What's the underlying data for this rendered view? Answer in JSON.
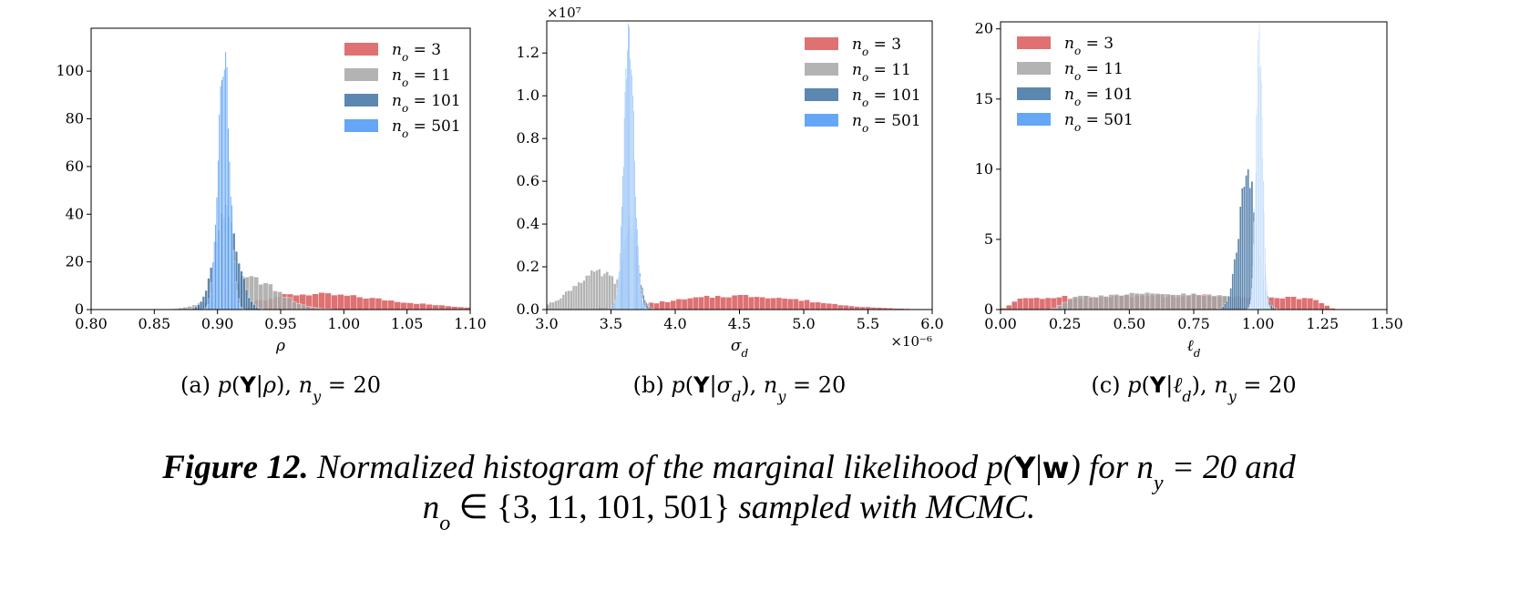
{
  "chart_data": [
    {
      "type": "bar",
      "xlabel": "ρ",
      "subcaption": "(a) p(Y|ρ), n_y = 20",
      "xlim": [
        0.8,
        1.1
      ],
      "ylim": [
        0,
        118
      ],
      "xticks": [
        "0.80",
        "0.85",
        "0.90",
        "0.95",
        "1.00",
        "1.05",
        "1.10"
      ],
      "yticks": [
        "0",
        "20",
        "40",
        "60",
        "80",
        "100"
      ],
      "ytick_values": [
        0,
        20,
        40,
        60,
        80,
        100
      ],
      "xtick_values": [
        0.8,
        0.85,
        0.9,
        0.95,
        1.0,
        1.05,
        1.1
      ],
      "legend_position": "upper-right",
      "series": [
        {
          "name": "n_o = 3",
          "color": "#d9585a",
          "distribution": "right-skewed",
          "center": 0.97,
          "spread": 0.055,
          "peak": 6.5,
          "xrange": [
            0.8,
            1.1
          ]
        },
        {
          "name": "n_o = 11",
          "color": "#a6a6a6",
          "distribution": "normal",
          "center": 0.925,
          "spread": 0.022,
          "peak": 13,
          "xrange": [
            0.85,
            1.0
          ]
        },
        {
          "name": "n_o = 101",
          "color": "#3f72a2",
          "distribution": "normal",
          "center": 0.907,
          "spread": 0.009,
          "peak": 40,
          "xrange": [
            0.87,
            0.95
          ]
        },
        {
          "name": "n_o = 501",
          "color": "#4a97f5",
          "distribution": "normal",
          "center": 0.905,
          "spread": 0.0045,
          "peak": 111,
          "xrange": [
            0.885,
            0.93
          ]
        }
      ]
    },
    {
      "type": "bar",
      "xlabel": "σ_d",
      "subcaption": "(b) p(Y|σ_d), n_y = 20",
      "x_multiplier": "×10⁻⁶",
      "y_multiplier": "×10⁷",
      "xlim": [
        3.0,
        6.0
      ],
      "ylim": [
        0,
        1.35
      ],
      "xticks": [
        "3.0",
        "3.5",
        "4.0",
        "4.5",
        "5.0",
        "5.5",
        "6.0"
      ],
      "yticks": [
        "0.0",
        "0.2",
        "0.4",
        "0.6",
        "0.8",
        "1.0",
        "1.2"
      ],
      "ytick_values": [
        0,
        0.2,
        0.4,
        0.6,
        0.8,
        1.0,
        1.2
      ],
      "xtick_values": [
        3.0,
        3.5,
        4.0,
        4.5,
        5.0,
        5.5,
        6.0
      ],
      "legend_position": "upper-right",
      "series": [
        {
          "name": "n_o = 3",
          "color": "#d9585a",
          "distribution": "normal",
          "center": 4.5,
          "spread": 0.55,
          "peak": 0.065,
          "xrange": [
            3.4,
            6.0
          ]
        },
        {
          "name": "n_o = 11",
          "color": "#a6a6a6",
          "distribution": "normal",
          "center": 3.4,
          "spread": 0.2,
          "peak": 0.17,
          "xrange": [
            3.0,
            3.8
          ]
        },
        {
          "name": "n_o = 101",
          "color": "#3f72a2",
          "distribution": "normal",
          "center": 3.65,
          "spread": 0.055,
          "peak": 0.42,
          "xrange": [
            3.45,
            3.85
          ]
        },
        {
          "name": "n_o = 501",
          "color": "#4a97f5",
          "distribution": "normal",
          "center": 3.64,
          "spread": 0.04,
          "peak": 1.27,
          "xrange": [
            3.5,
            3.8
          ]
        }
      ]
    },
    {
      "type": "bar",
      "xlabel": "ℓ_d",
      "subcaption": "(c) p(Y|ℓ_d), n_y = 20",
      "xlim": [
        0.0,
        1.5
      ],
      "ylim": [
        0,
        20.5
      ],
      "xticks": [
        "0.00",
        "0.25",
        "0.50",
        "0.75",
        "1.00",
        "1.25",
        "1.50"
      ],
      "yticks": [
        "0",
        "5",
        "10",
        "15",
        "20"
      ],
      "ytick_values": [
        0,
        5,
        10,
        15,
        20
      ],
      "xtick_values": [
        0,
        0.25,
        0.5,
        0.75,
        1.0,
        1.25,
        1.5
      ],
      "legend_position": "upper-left",
      "series": [
        {
          "name": "n_o = 3",
          "color": "#d9585a",
          "distribution": "flat",
          "center": 0.55,
          "spread": 0.6,
          "peak": 1.0,
          "xrange": [
            0.0,
            1.3
          ]
        },
        {
          "name": "n_o = 11",
          "color": "#a6a6a6",
          "distribution": "flat",
          "center": 0.55,
          "spread": 0.55,
          "peak": 1.1,
          "xrange": [
            0.2,
            1.0
          ]
        },
        {
          "name": "n_o = 101",
          "color": "#3f72a2",
          "distribution": "normal",
          "center": 0.96,
          "spread": 0.035,
          "peak": 9.5,
          "xrange": [
            0.8,
            1.1
          ]
        },
        {
          "name": "n_o = 501",
          "color": "#4a97f5",
          "distribution": "normal",
          "center": 1.005,
          "spread": 0.013,
          "peak": 19.5,
          "xrange": [
            0.95,
            1.05
          ]
        }
      ]
    }
  ],
  "caption": {
    "label": "Figure 12.",
    "line1": "Normalized histogram of the marginal likelihood p(Y|w) for n_y = 20 and",
    "line2": "n_o ∈ {3, 11, 101, 501} sampled with MCMC."
  }
}
